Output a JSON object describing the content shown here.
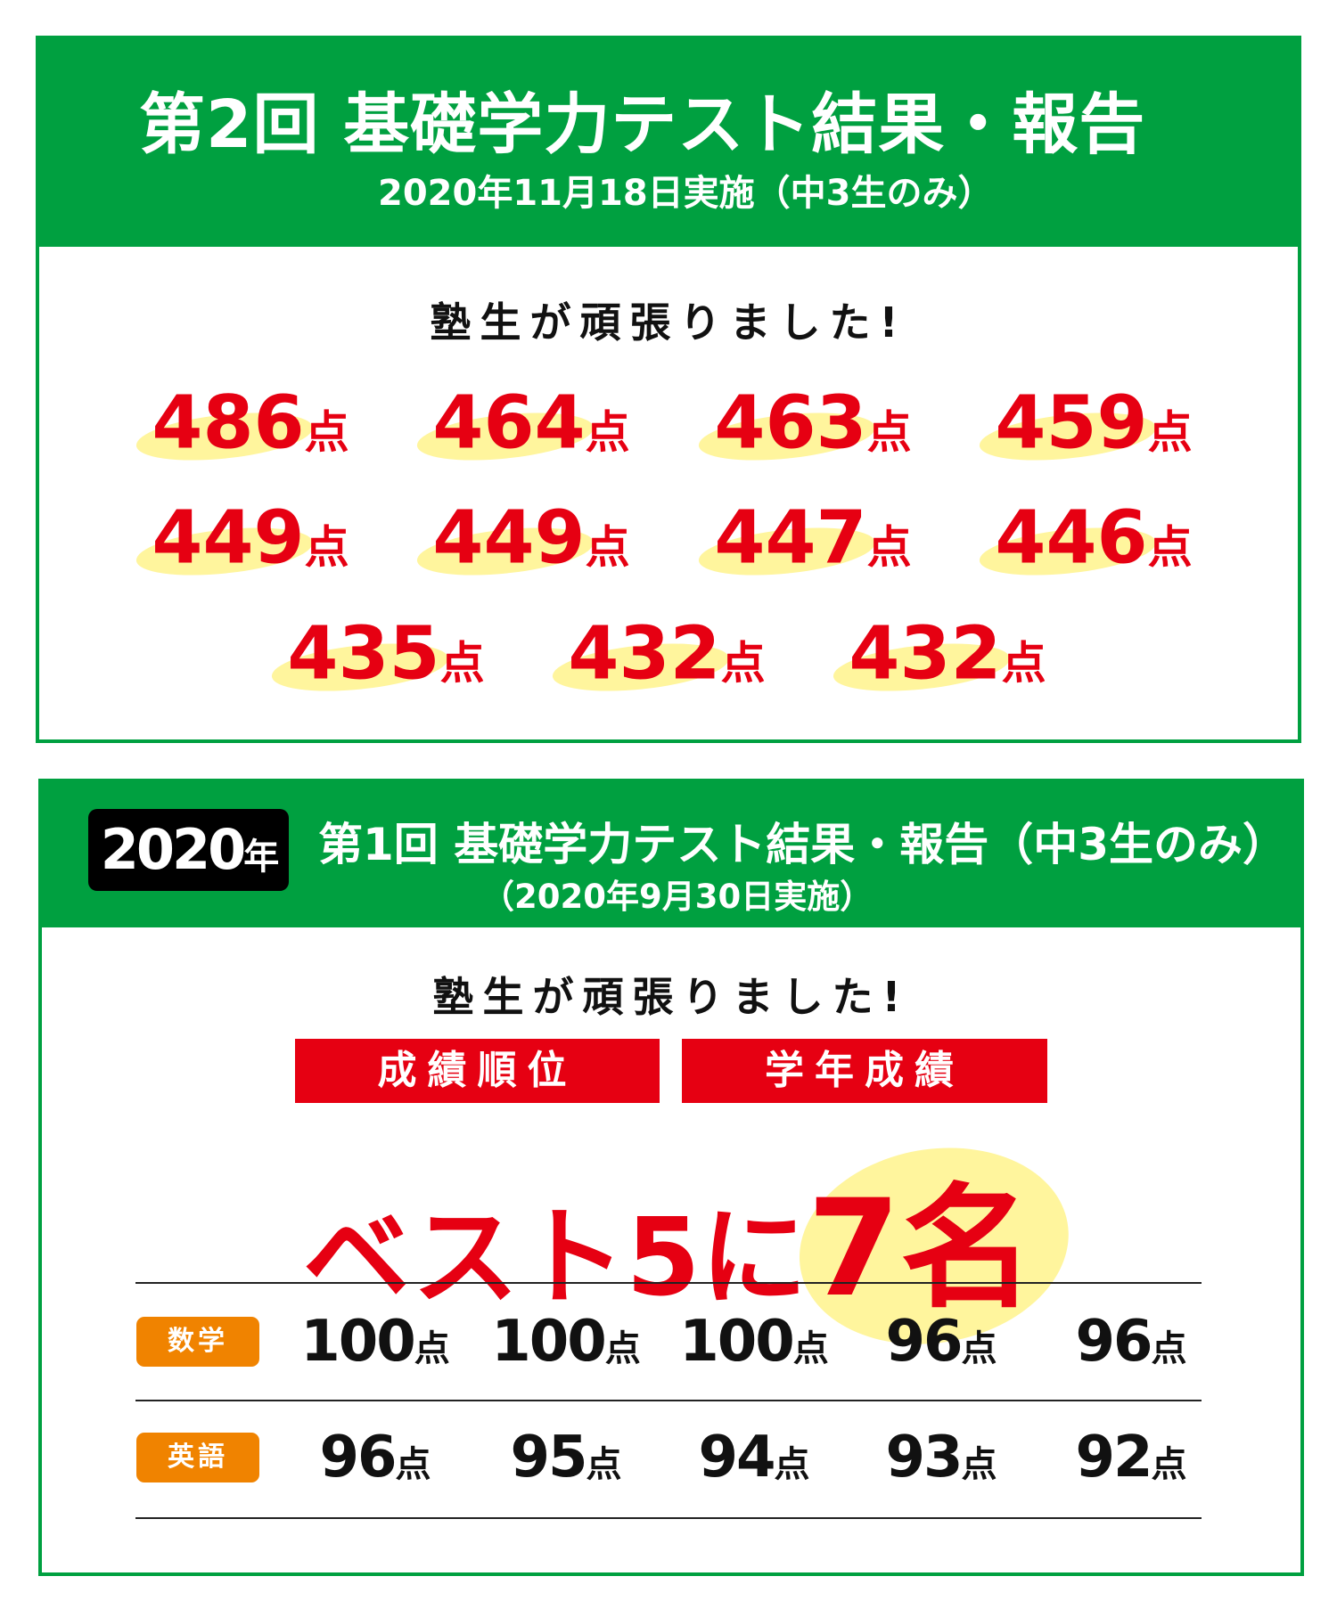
{
  "report2": {
    "title": "第2回 基礎学力テスト結果・報告",
    "subtitle": "2020年11月18日実施（中3生のみ）",
    "cheer": "塾生が頑張りました!",
    "unit": "点",
    "scores": [
      "486",
      "464",
      "463",
      "459",
      "449",
      "449",
      "447",
      "446",
      "435",
      "432",
      "432"
    ]
  },
  "report1": {
    "year_badge": "2020",
    "year_suffix": "年",
    "title": "第1回 基礎学力テスト結果・報告（中3生のみ）",
    "subtitle": "（2020年9月30日実施）",
    "cheer": "塾生が頑張りました!",
    "tags": [
      "成績順位",
      "学年成績"
    ],
    "headline_prefix": "ベスト5に",
    "headline_count": "7名",
    "unit": "点",
    "subjects": [
      {
        "label": "数学",
        "scores": [
          "100",
          "100",
          "100",
          "96",
          "96"
        ]
      },
      {
        "label": "英語",
        "scores": [
          "96",
          "95",
          "94",
          "93",
          "92"
        ]
      }
    ]
  },
  "colors": {
    "green": "#00a040",
    "red": "#e60012",
    "orange": "#f08300",
    "highlight": "#fff59d"
  }
}
